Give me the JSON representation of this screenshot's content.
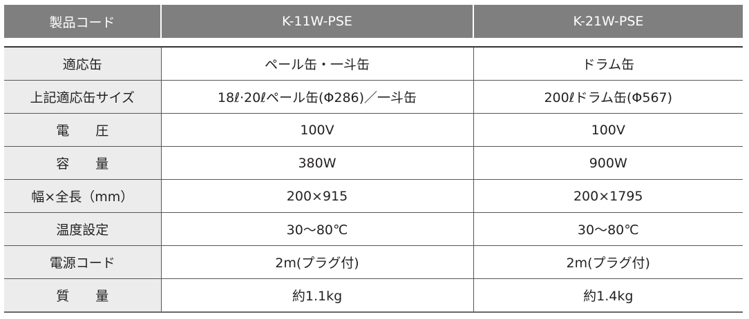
{
  "header": {
    "label": "製品コード",
    "models": [
      "K-11W-PSE",
      "K-21W-PSE"
    ]
  },
  "rows": [
    {
      "label": "適応缶",
      "values": [
        "ペール缶・一斗缶",
        "ドラム缶"
      ]
    },
    {
      "label": "上記適応缶サイズ",
      "values": [
        "18ℓ·20ℓペール缶(Φ286)／一斗缶",
        "200ℓドラム缶(Φ567)"
      ]
    },
    {
      "label": "電　　圧",
      "values": [
        "100V",
        "100V"
      ]
    },
    {
      "label": "容　　量",
      "values": [
        "380W",
        "900W"
      ]
    },
    {
      "label": "幅×全長（mm）",
      "values": [
        "200×915",
        "200×1795"
      ]
    },
    {
      "label": "温度設定",
      "values": [
        "30〜80℃",
        "30〜80℃"
      ]
    },
    {
      "label": "電源コード",
      "values": [
        "2m(プラグ付)",
        "2m(プラグ付)"
      ]
    },
    {
      "label": "質　　量",
      "values": [
        "約1.1kg",
        "約1.4kg"
      ]
    }
  ]
}
